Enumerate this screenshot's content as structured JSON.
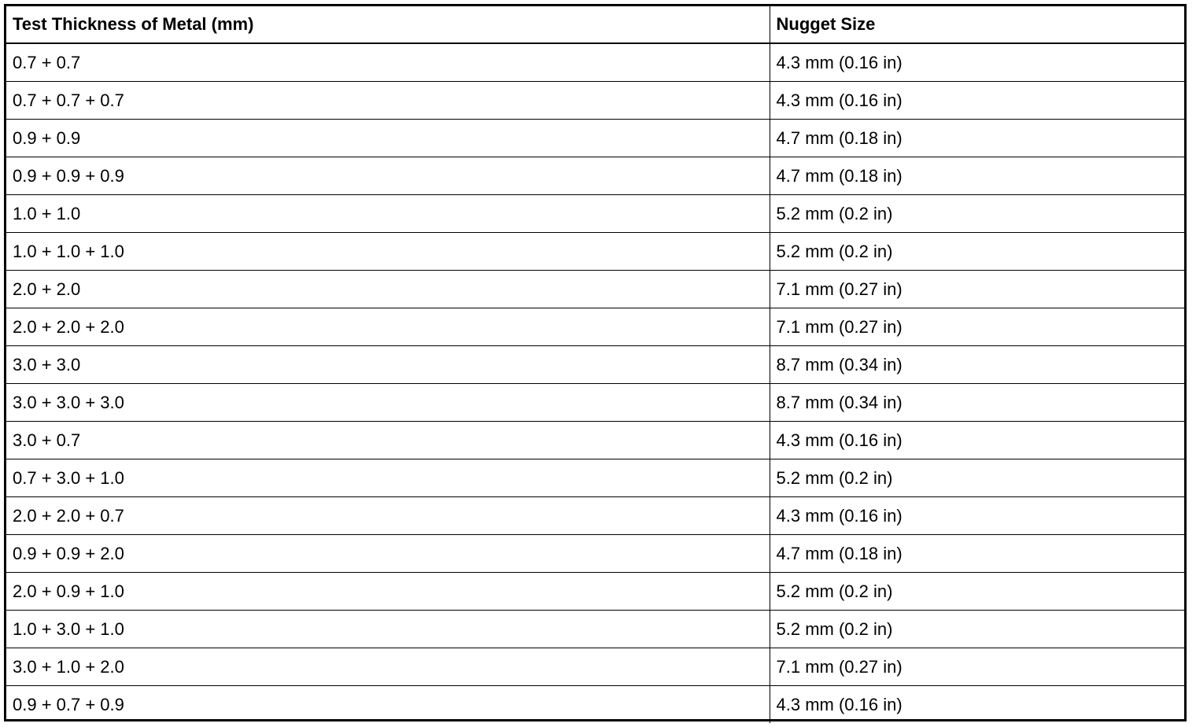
{
  "table": {
    "headers": [
      "Test Thickness of Metal (mm)",
      "Nugget Size"
    ],
    "rows": [
      [
        "0.7 + 0.7",
        "4.3 mm (0.16 in)"
      ],
      [
        "0.7 + 0.7 + 0.7",
        "4.3 mm (0.16 in)"
      ],
      [
        "0.9 + 0.9",
        "4.7 mm (0.18 in)"
      ],
      [
        "0.9 + 0.9 + 0.9",
        "4.7 mm (0.18 in)"
      ],
      [
        "1.0 + 1.0",
        "5.2 mm (0.2 in)"
      ],
      [
        "1.0 + 1.0 + 1.0",
        "5.2 mm (0.2 in)"
      ],
      [
        "2.0 + 2.0",
        "7.1 mm (0.27 in)"
      ],
      [
        "2.0 + 2.0 + 2.0",
        "7.1 mm (0.27 in)"
      ],
      [
        "3.0 + 3.0",
        "8.7 mm (0.34 in)"
      ],
      [
        "3.0 + 3.0 + 3.0",
        "8.7 mm (0.34 in)"
      ],
      [
        "3.0 + 0.7",
        "4.3 mm (0.16 in)"
      ],
      [
        "0.7 + 3.0 + 1.0",
        "5.2 mm (0.2 in)"
      ],
      [
        "2.0 + 2.0 + 0.7",
        "4.3 mm (0.16 in)"
      ],
      [
        "0.9 + 0.9 + 2.0",
        "4.7 mm (0.18 in)"
      ],
      [
        "2.0 + 0.9 + 1.0",
        "5.2 mm (0.2 in)"
      ],
      [
        "1.0 + 3.0 + 1.0",
        "5.2 mm (0.2 in)"
      ],
      [
        "3.0 + 1.0 + 2.0",
        "7.1 mm (0.27 in)"
      ],
      [
        "0.9 + 0.7 + 0.9",
        "4.3 mm (0.16 in)"
      ]
    ]
  }
}
